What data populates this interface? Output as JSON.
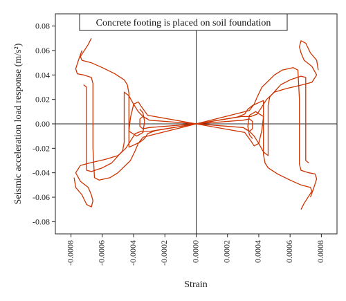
{
  "chart_data": {
    "type": "line",
    "annotation": "Concrete footing is placed on soil foundation",
    "xlabel": "Strain",
    "ylabel": "Seismic acceleration load response (m/s²)",
    "xlim": [
      -0.0009,
      0.0009
    ],
    "ylim": [
      -0.09,
      0.09
    ],
    "x_ticks": [
      -0.0008,
      -0.0006,
      -0.0004,
      -0.0002,
      0.0,
      0.0002,
      0.0004,
      0.0006,
      0.0008
    ],
    "x_tick_labels": [
      "-0.0008",
      "-0.0006",
      "-0.0004",
      "-0.0002",
      "0.0000",
      "0.0002",
      "0.0004",
      "0.0006",
      "0.0008"
    ],
    "y_ticks": [
      -0.08,
      -0.06,
      -0.04,
      -0.02,
      0.0,
      0.02,
      0.04,
      0.06,
      0.08
    ],
    "y_tick_labels": [
      "-0.08",
      "-0.06",
      "-0.04",
      "-0.02",
      "0.00",
      "0.02",
      "0.04",
      "0.06",
      "0.08"
    ],
    "grid": false,
    "line_color": "#cc3300",
    "series": [
      {
        "points": [
          [
            0.0,
            0.0
          ],
          [
            0.00026,
            0.0055
          ],
          [
            0.00031,
            0.008
          ],
          [
            0.00033,
            0.012
          ],
          [
            0.00036,
            0.015
          ],
          [
            0.00041,
            0.018
          ],
          [
            0.00043,
            0.019
          ],
          [
            0.00043,
            0.01
          ],
          [
            0.00043,
            -0.005
          ],
          [
            0.00043,
            -0.025
          ],
          [
            0.00044,
            -0.032
          ],
          [
            0.00046,
            -0.036
          ],
          [
            0.00052,
            -0.041
          ],
          [
            0.0006,
            -0.046
          ],
          [
            0.00067,
            -0.05
          ],
          [
            0.00073,
            -0.052
          ],
          [
            0.00074,
            -0.055
          ],
          [
            0.00072,
            -0.059
          ],
          [
            0.00069,
            -0.065
          ],
          [
            0.00067,
            -0.07
          ]
        ]
      },
      {
        "points": [
          [
            0.0,
            0.0
          ],
          [
            0.00028,
            0.009
          ],
          [
            0.00034,
            0.011
          ],
          [
            0.00037,
            0.016
          ],
          [
            0.00039,
            0.022
          ],
          [
            0.00042,
            0.03
          ],
          [
            0.0005,
            0.04
          ],
          [
            0.00055,
            0.044
          ],
          [
            0.00062,
            0.046
          ],
          [
            0.00065,
            0.044
          ],
          [
            0.00066,
            0.02
          ],
          [
            0.00066,
            -0.01
          ],
          [
            0.00066,
            -0.033
          ],
          [
            0.00067,
            -0.038
          ],
          [
            0.00072,
            -0.04
          ],
          [
            0.00076,
            -0.041
          ],
          [
            0.00077,
            -0.045
          ],
          [
            0.00075,
            -0.053
          ],
          [
            0.00073,
            -0.06
          ]
        ]
      },
      {
        "points": [
          [
            0.0,
            0.0
          ],
          [
            0.00029,
            0.006
          ],
          [
            0.00035,
            0.006
          ],
          [
            0.00039,
            0.008
          ],
          [
            0.00041,
            0.012
          ],
          [
            0.00045,
            0.02
          ],
          [
            0.0005,
            0.026
          ],
          [
            0.00058,
            0.029
          ],
          [
            0.00068,
            0.032
          ],
          [
            0.00074,
            0.034
          ],
          [
            0.00077,
            0.04
          ],
          [
            0.00074,
            0.047
          ],
          [
            0.00069,
            0.052
          ],
          [
            0.00067,
            0.058
          ],
          [
            0.00066,
            0.063
          ],
          [
            0.00067,
            0.068
          ],
          [
            0.0007,
            0.066
          ],
          [
            0.00073,
            0.058
          ],
          [
            0.00077,
            0.052
          ],
          [
            0.00078,
            0.044
          ]
        ]
      },
      {
        "points": [
          [
            0.0,
            0.0
          ],
          [
            0.0003,
            -0.003
          ],
          [
            0.00034,
            -0.006
          ],
          [
            0.00037,
            -0.01
          ],
          [
            0.0004,
            -0.016
          ],
          [
            0.00043,
            -0.023
          ],
          [
            0.00046,
            -0.026
          ],
          [
            0.00046,
            -0.005
          ],
          [
            0.00046,
            0.015
          ],
          [
            0.00047,
            0.022
          ],
          [
            0.00054,
            0.032
          ],
          [
            0.0006,
            0.036
          ],
          [
            0.00067,
            0.039
          ],
          [
            0.0007,
            0.038
          ],
          [
            0.0007,
            0.015
          ],
          [
            0.0007,
            -0.01
          ],
          [
            0.0007,
            -0.03
          ],
          [
            0.00072,
            -0.032
          ]
        ]
      },
      {
        "points": [
          [
            0.0,
            0.0
          ],
          [
            0.00031,
            -0.007
          ],
          [
            0.00035,
            -0.014
          ],
          [
            0.00037,
            -0.018
          ],
          [
            0.0004,
            -0.016
          ],
          [
            0.00042,
            -0.005
          ],
          [
            0.00043,
            0.006
          ],
          [
            0.00038,
            0.01
          ],
          [
            0.00034,
            0.007
          ],
          [
            0.00033,
            -0.002
          ],
          [
            0.00034,
            -0.009
          ],
          [
            0.00036,
            -0.012
          ]
        ]
      },
      {
        "points": [
          [
            0.0,
            0.0
          ],
          [
            0.0003,
            0.003
          ],
          [
            0.00034,
            0.004
          ],
          [
            0.00036,
            0.002
          ],
          [
            0.00036,
            -0.004
          ],
          [
            0.00034,
            -0.006
          ],
          [
            0.00031,
            -0.004
          ]
        ]
      },
      {
        "points": [
          [
            0.0,
            0.0
          ],
          [
            -0.00026,
            -0.0055
          ],
          [
            -0.00031,
            -0.008
          ],
          [
            -0.00033,
            -0.012
          ],
          [
            -0.00036,
            -0.015
          ],
          [
            -0.00041,
            -0.018
          ],
          [
            -0.00043,
            -0.019
          ],
          [
            -0.00043,
            -0.01
          ],
          [
            -0.00043,
            0.005
          ],
          [
            -0.00043,
            0.025
          ],
          [
            -0.00044,
            0.032
          ],
          [
            -0.00046,
            0.036
          ],
          [
            -0.00052,
            0.041
          ],
          [
            -0.0006,
            0.046
          ],
          [
            -0.00067,
            0.05
          ],
          [
            -0.00073,
            0.052
          ],
          [
            -0.00074,
            0.055
          ],
          [
            -0.00072,
            0.059
          ],
          [
            -0.00069,
            0.065
          ],
          [
            -0.00067,
            0.07
          ]
        ]
      },
      {
        "points": [
          [
            0.0,
            0.0
          ],
          [
            -0.00028,
            -0.009
          ],
          [
            -0.00034,
            -0.011
          ],
          [
            -0.00037,
            -0.016
          ],
          [
            -0.00039,
            -0.022
          ],
          [
            -0.00042,
            -0.03
          ],
          [
            -0.0005,
            -0.04
          ],
          [
            -0.00055,
            -0.044
          ],
          [
            -0.00062,
            -0.046
          ],
          [
            -0.00065,
            -0.044
          ],
          [
            -0.00066,
            -0.02
          ],
          [
            -0.00066,
            0.01
          ],
          [
            -0.00066,
            0.033
          ],
          [
            -0.00067,
            0.038
          ],
          [
            -0.00072,
            0.04
          ],
          [
            -0.00076,
            0.041
          ],
          [
            -0.00077,
            0.045
          ],
          [
            -0.00075,
            0.053
          ],
          [
            -0.00073,
            0.06
          ]
        ]
      },
      {
        "points": [
          [
            0.0,
            0.0
          ],
          [
            -0.00029,
            -0.006
          ],
          [
            -0.00035,
            -0.006
          ],
          [
            -0.00039,
            -0.008
          ],
          [
            -0.00041,
            -0.012
          ],
          [
            -0.00045,
            -0.02
          ],
          [
            -0.0005,
            -0.026
          ],
          [
            -0.00058,
            -0.029
          ],
          [
            -0.00068,
            -0.032
          ],
          [
            -0.00074,
            -0.034
          ],
          [
            -0.00077,
            -0.04
          ],
          [
            -0.00074,
            -0.047
          ],
          [
            -0.00069,
            -0.052
          ],
          [
            -0.00067,
            -0.058
          ],
          [
            -0.00066,
            -0.063
          ],
          [
            -0.00067,
            -0.068
          ],
          [
            -0.0007,
            -0.066
          ],
          [
            -0.00073,
            -0.058
          ],
          [
            -0.00077,
            -0.052
          ],
          [
            -0.00078,
            -0.044
          ]
        ]
      },
      {
        "points": [
          [
            0.0,
            0.0
          ],
          [
            -0.0003,
            0.003
          ],
          [
            -0.00034,
            0.006
          ],
          [
            -0.00037,
            0.01
          ],
          [
            -0.0004,
            0.016
          ],
          [
            -0.00043,
            0.023
          ],
          [
            -0.00046,
            0.026
          ],
          [
            -0.00046,
            0.005
          ],
          [
            -0.00046,
            -0.015
          ],
          [
            -0.00047,
            -0.022
          ],
          [
            -0.00054,
            -0.032
          ],
          [
            -0.0006,
            -0.036
          ],
          [
            -0.00067,
            -0.039
          ],
          [
            -0.0007,
            -0.038
          ],
          [
            -0.0007,
            -0.015
          ],
          [
            -0.0007,
            0.01
          ],
          [
            -0.0007,
            0.03
          ],
          [
            -0.00072,
            0.032
          ]
        ]
      },
      {
        "points": [
          [
            0.0,
            0.0
          ],
          [
            -0.00031,
            0.007
          ],
          [
            -0.00035,
            0.014
          ],
          [
            -0.00037,
            0.018
          ],
          [
            -0.0004,
            0.016
          ],
          [
            -0.00042,
            0.005
          ],
          [
            -0.00043,
            -0.006
          ],
          [
            -0.00038,
            -0.01
          ],
          [
            -0.00034,
            -0.007
          ],
          [
            -0.00033,
            0.002
          ],
          [
            -0.00034,
            0.009
          ],
          [
            -0.00036,
            0.012
          ]
        ]
      },
      {
        "points": [
          [
            0.0,
            0.0
          ],
          [
            -0.0003,
            -0.003
          ],
          [
            -0.00034,
            -0.004
          ],
          [
            -0.00036,
            -0.002
          ],
          [
            -0.00036,
            0.004
          ],
          [
            -0.00034,
            0.006
          ],
          [
            -0.00031,
            0.004
          ]
        ]
      }
    ]
  }
}
